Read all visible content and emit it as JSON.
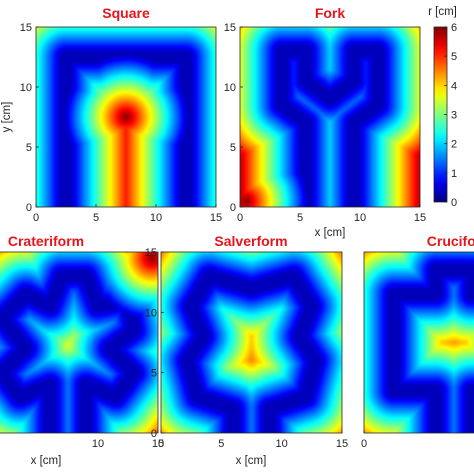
{
  "chart_data": {
    "type": "heatmap",
    "colormap": "jet",
    "colorbar": {
      "label": "r [cm]",
      "range": [
        0,
        6
      ],
      "ticks": [
        "0",
        "1",
        "2",
        "3",
        "4",
        "5",
        "6"
      ]
    },
    "panels": [
      {
        "title": "Square",
        "xlabel": "",
        "ylabel": "y [cm]",
        "xlim": [
          0,
          15
        ],
        "ylim": [
          0,
          15
        ],
        "xticks": [
          "0",
          "5",
          "10",
          "15"
        ],
        "yticks": [
          "0",
          "5",
          "10",
          "15"
        ],
        "path": [
          [
            2.5,
            0
          ],
          [
            2.5,
            12.5
          ],
          [
            12.5,
            12.5
          ],
          [
            12.5,
            0
          ]
        ],
        "peak": {
          "x": 7.5,
          "y": 7.5,
          "value": 6
        }
      },
      {
        "title": "Fork",
        "xlabel": "x [cm]",
        "ylabel": "",
        "xlim": [
          0,
          15
        ],
        "ylim": [
          0,
          15
        ],
        "xticks": [
          "0",
          "5",
          "10",
          "15"
        ],
        "yticks": [
          "0",
          "5",
          "10",
          "15"
        ],
        "path": [
          [
            5.5,
            0
          ],
          [
            5.5,
            7
          ],
          [
            3.5,
            8.5
          ],
          [
            3.5,
            13
          ],
          [
            5.5,
            13
          ],
          [
            5.5,
            10.5
          ],
          [
            7.5,
            9
          ],
          [
            9.5,
            10.5
          ],
          [
            9.5,
            13
          ],
          [
            11.5,
            13
          ],
          [
            11.5,
            8.5
          ],
          [
            9.5,
            7
          ],
          [
            9.5,
            0
          ]
        ],
        "peak": {
          "x": 0.5,
          "y": 0.5,
          "value": 6
        }
      },
      {
        "title": "Crateriform",
        "xlabel": "x [cm]",
        "ylabel": "",
        "xlim": [
          0,
          15
        ],
        "ylim": [
          0,
          15
        ],
        "xticks": [
          "10",
          "15"
        ],
        "yticks": [],
        "path": [
          [
            6,
            0
          ],
          [
            6,
            4
          ],
          [
            3.5,
            3
          ],
          [
            2,
            5
          ],
          [
            4,
            7
          ],
          [
            2,
            9.5
          ],
          [
            4,
            11.5
          ],
          [
            6,
            10.5
          ],
          [
            7,
            13
          ],
          [
            9,
            13
          ],
          [
            10,
            10.5
          ],
          [
            12.5,
            11
          ],
          [
            13,
            8.5
          ],
          [
            11,
            7
          ],
          [
            13,
            5
          ],
          [
            11.5,
            3
          ],
          [
            9,
            4
          ],
          [
            9,
            0
          ]
        ],
        "peak": {
          "x": 14.5,
          "y": 14.5,
          "value": 6
        }
      },
      {
        "title": "Salverform",
        "xlabel": "x [cm]",
        "ylabel": "",
        "xlim": [
          0,
          15
        ],
        "ylim": [
          0,
          15
        ],
        "xticks": [
          "0",
          "5",
          "10",
          "15"
        ],
        "yticks": [
          "0",
          "5",
          "10",
          "15"
        ],
        "path": [
          [
            6,
            0
          ],
          [
            6,
            2
          ],
          [
            3,
            3
          ],
          [
            2.2,
            6
          ],
          [
            3.5,
            8
          ],
          [
            2.5,
            10.5
          ],
          [
            4,
            13
          ],
          [
            7.5,
            12
          ],
          [
            11,
            13
          ],
          [
            12.5,
            10.5
          ],
          [
            11.5,
            8
          ],
          [
            12.8,
            6
          ],
          [
            12,
            3
          ],
          [
            9,
            2
          ],
          [
            9,
            0
          ]
        ],
        "peak": {
          "x": 7.5,
          "y": 6,
          "value": 4.5
        }
      },
      {
        "title": "Crucifor",
        "xlabel": "",
        "ylabel": "",
        "xlim": [
          0,
          15
        ],
        "ylim": [
          0,
          15
        ],
        "xticks": [
          "0"
        ],
        "yticks": [],
        "path": [
          [
            6,
            0
          ],
          [
            6,
            3.5
          ],
          [
            2.5,
            3.5
          ],
          [
            2.5,
            11.5
          ],
          [
            6,
            11.5
          ],
          [
            6,
            13.5
          ],
          [
            9,
            13.5
          ],
          [
            9,
            11.5
          ],
          [
            12.5,
            11.5
          ],
          [
            12.5,
            3.5
          ],
          [
            9,
            3.5
          ],
          [
            9,
            0
          ]
        ],
        "peak": {
          "x": 7.5,
          "y": 7.5,
          "value": 3.5
        }
      }
    ]
  }
}
